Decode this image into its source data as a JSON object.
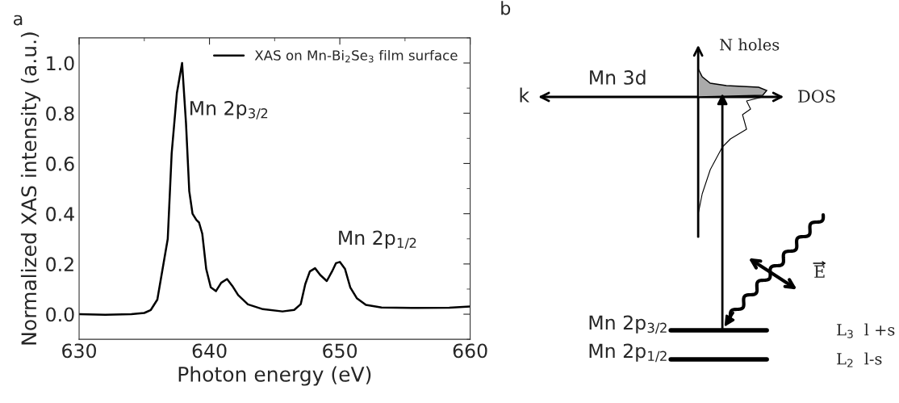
{
  "chart_data": [
    {
      "type": "line",
      "title": "a",
      "xlabel": "Photon energy (eV)",
      "ylabel": "Normalized XAS intensity (a.u.)",
      "xlim": [
        630,
        660
      ],
      "xticks": [
        630,
        640,
        650,
        660
      ],
      "ylim": [
        -0.1,
        1.1
      ],
      "yticks": [
        {
          "value": 0,
          "label": "0.0"
        },
        {
          "value": 0.2,
          "label": "0.2"
        },
        {
          "value": 0.4,
          "label": "0.4"
        },
        {
          "value": 0.6,
          "label": "0.6"
        },
        {
          "value": 0.8,
          "label": "0.8"
        },
        {
          "value": 1,
          "label": "1.0"
        }
      ],
      "legend": "top right",
      "series": [
        {
          "name": "XAS on Mn-Bi$_{2}$Se$_{3}$ film surface",
          "color": "#000000",
          "x": [
            630,
            632,
            634,
            635,
            635.5,
            636,
            636.8,
            637.1,
            637.5,
            637.9,
            638.2,
            638.45,
            638.7,
            639.0,
            639.2,
            639.45,
            639.75,
            640.1,
            640.5,
            640.9,
            641.35,
            641.75,
            642.2,
            642.95,
            644.1,
            645.6,
            646.5,
            647.0,
            647.35,
            647.7,
            648.1,
            648.5,
            649.0,
            649.4,
            649.7,
            650.0,
            650.4,
            650.8,
            651.3,
            652.0,
            653.2,
            656.0,
            658.4,
            660
          ],
          "values": [
            0.0,
            -0.002,
            0.0,
            0.005,
            0.017,
            0.058,
            0.3,
            0.64,
            0.88,
            1.0,
            0.76,
            0.49,
            0.4,
            0.375,
            0.365,
            0.32,
            0.18,
            0.107,
            0.092,
            0.125,
            0.14,
            0.113,
            0.076,
            0.039,
            0.02,
            0.011,
            0.017,
            0.04,
            0.12,
            0.17,
            0.183,
            0.156,
            0.132,
            0.17,
            0.203,
            0.208,
            0.18,
            0.107,
            0.064,
            0.037,
            0.027,
            0.025,
            0.026,
            0.031
          ]
        }
      ],
      "annotations": [
        "Mn 2p$_{3/2}$",
        "Mn 2p$_{1/2}$"
      ]
    },
    {
      "type": "other",
      "title": "b",
      "annotations": [
        "Mn 3d",
        "k",
        "DOS",
        "N holes",
        "E",
        "Mn 2p$_{3/2}$",
        "Mn 2p$_{1/2}$",
        "L$_{3}$  l +s",
        "L$_{2}$  l-s"
      ]
    }
  ]
}
